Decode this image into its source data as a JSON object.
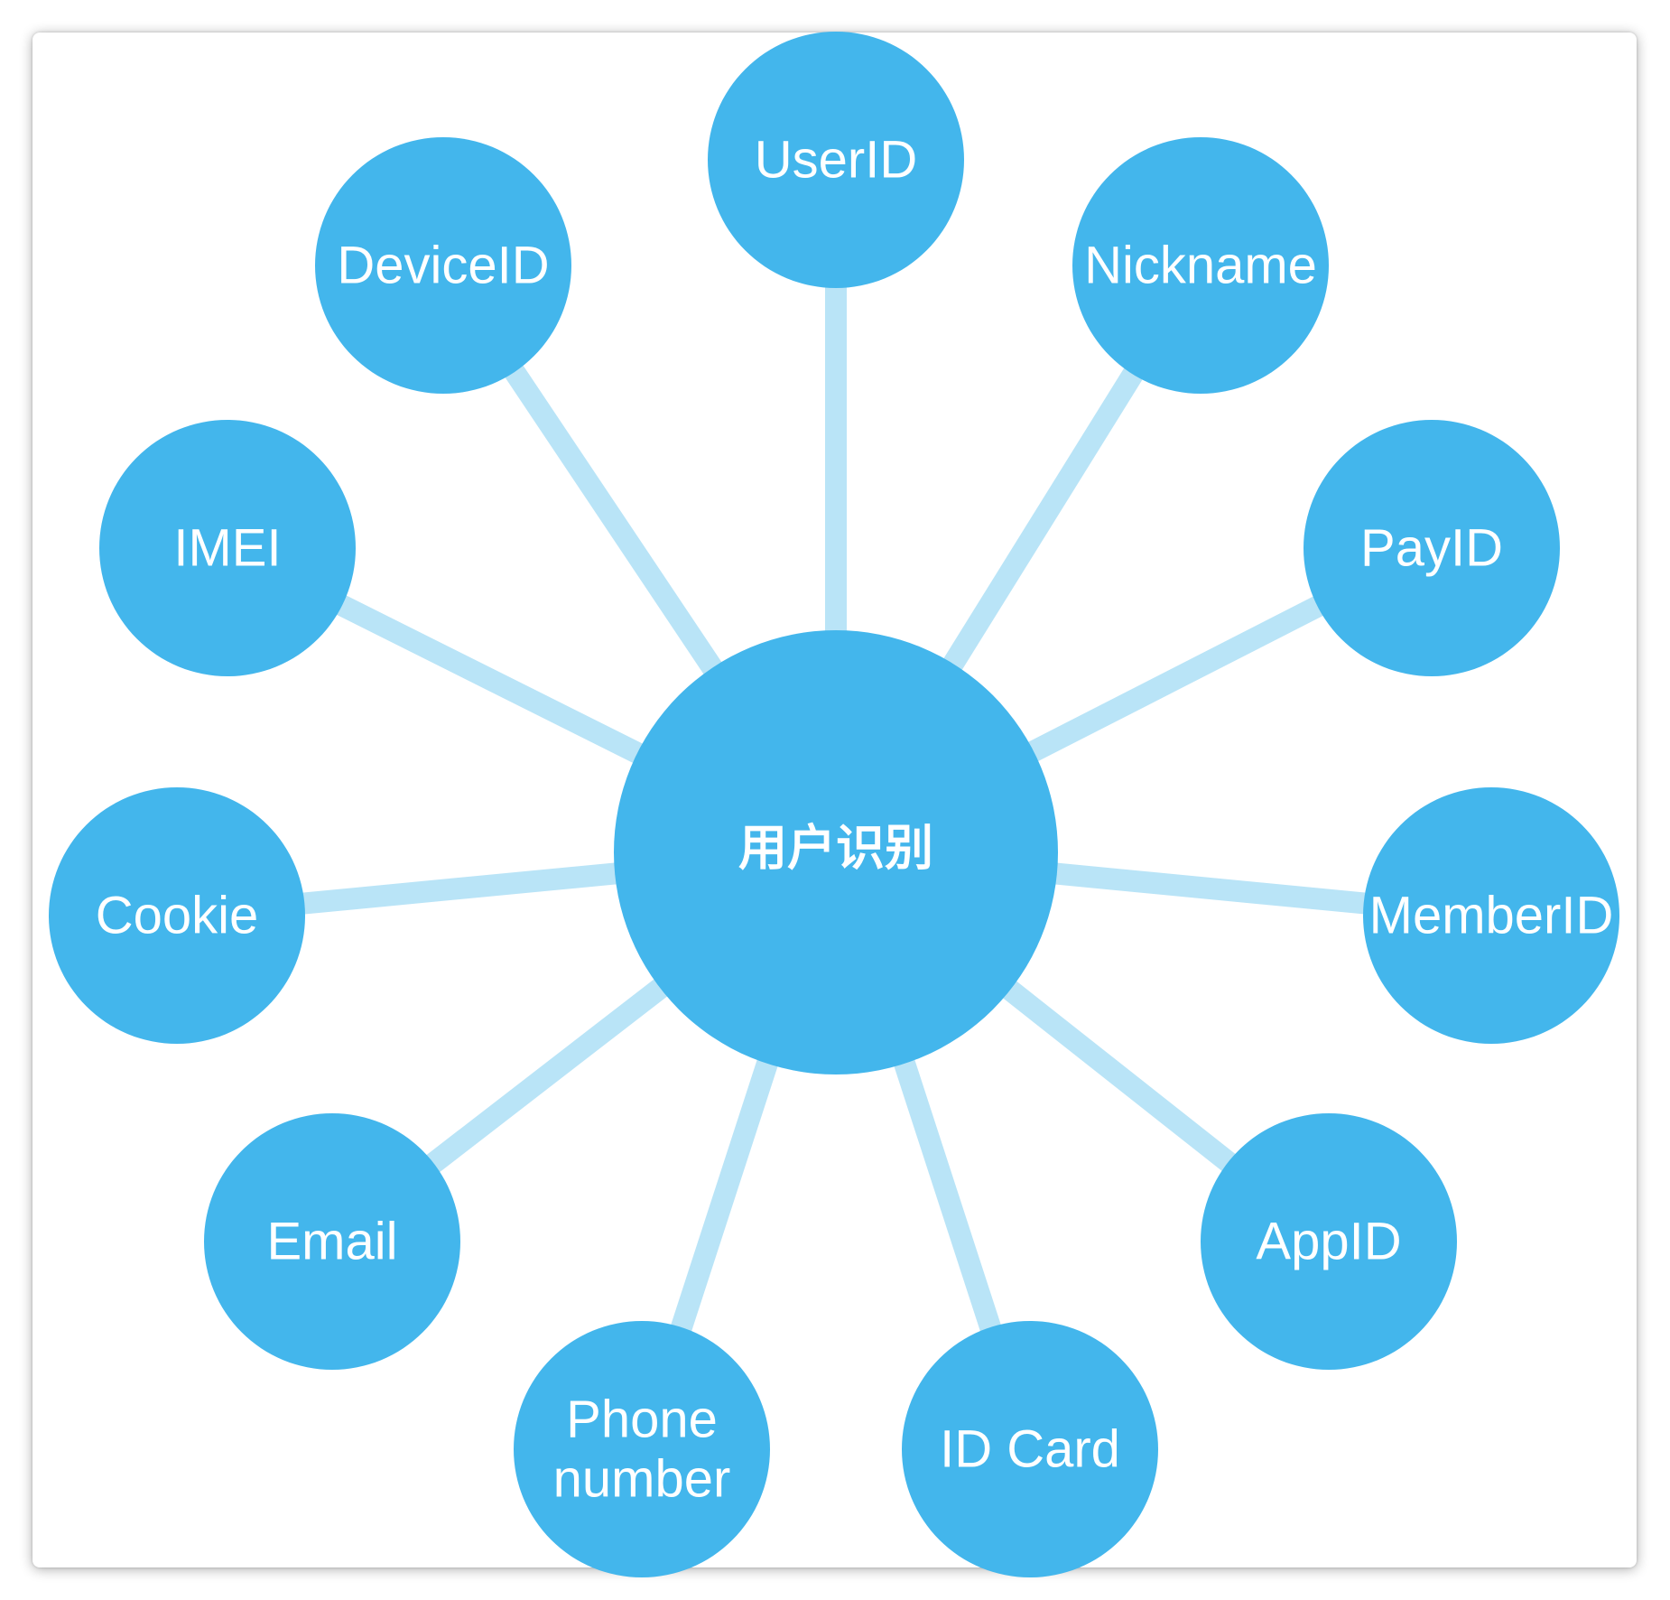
{
  "diagram": {
    "center": {
      "label": "用户识别"
    },
    "nodes": [
      {
        "id": "userid",
        "label": [
          "UserID"
        ]
      },
      {
        "id": "nickname",
        "label": [
          "Nickname"
        ]
      },
      {
        "id": "payid",
        "label": [
          "PayID"
        ]
      },
      {
        "id": "memberid",
        "label": [
          "MemberID"
        ]
      },
      {
        "id": "appid",
        "label": [
          "AppID"
        ]
      },
      {
        "id": "id-card",
        "label": [
          "ID Card"
        ]
      },
      {
        "id": "phone-number",
        "label": [
          "Phone",
          "number"
        ]
      },
      {
        "id": "email",
        "label": [
          "Email"
        ]
      },
      {
        "id": "cookie",
        "label": [
          "Cookie"
        ]
      },
      {
        "id": "imei",
        "label": [
          "IMEI"
        ]
      },
      {
        "id": "deviceid",
        "label": [
          "DeviceID"
        ]
      }
    ]
  },
  "colors": {
    "node_fill": "#43b6ec",
    "edge_stroke": "#b9e4f7",
    "text": "#ffffff",
    "background": "#ffffff"
  }
}
